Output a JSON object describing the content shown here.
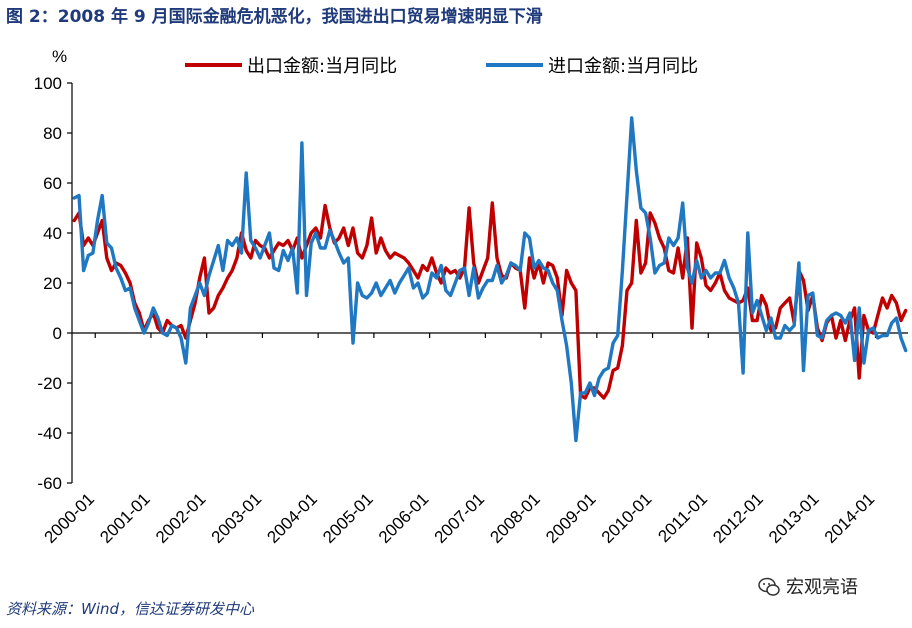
{
  "title": "图 2：2008 年 9 月国际金融危机恶化，我国进出口贸易增速明显下滑",
  "source": "资料来源：Wind，信达证券研发中心",
  "watermark": "宏观亮语",
  "colors": {
    "export": "#c00000",
    "import": "#1f78c1",
    "title": "#1f3a7a"
  },
  "chart_data": {
    "type": "line",
    "title": "2008 年 9 月国际金融危机恶化，我国进出口贸易增速明显下滑",
    "ylabel": "%",
    "xlabel": "",
    "ylim": [
      -60,
      100
    ],
    "yticks": [
      100,
      80,
      60,
      40,
      20,
      0,
      -20,
      -40,
      -60
    ],
    "xtick_labels": [
      "2000-01",
      "2001-01",
      "2002-01",
      "2003-01",
      "2004-01",
      "2005-01",
      "2006-01",
      "2007-01",
      "2008-01",
      "2009-01",
      "2010-01",
      "2011-01",
      "2012-01",
      "2013-01",
      "2014-01"
    ],
    "x_start": "2000-01",
    "x_end": "2014-12",
    "legend_position": "top-center",
    "series": [
      {
        "name": "出口金额:当月同比",
        "color": "#c00000",
        "values": [
          45,
          48,
          35,
          38,
          35,
          40,
          45,
          30,
          25,
          28,
          27,
          24,
          20,
          12,
          8,
          1,
          5,
          8,
          2,
          0,
          5,
          3,
          2,
          3,
          -2,
          5,
          12,
          22,
          30,
          8,
          10,
          15,
          18,
          22,
          25,
          30,
          40,
          33,
          30,
          37,
          35,
          34,
          30,
          33,
          36,
          35,
          37,
          33,
          38,
          30,
          35,
          40,
          42,
          38,
          51,
          42,
          36,
          38,
          42,
          35,
          42,
          32,
          30,
          35,
          46,
          32,
          38,
          33,
          30,
          32,
          31,
          30,
          28,
          25,
          22,
          27,
          25,
          30,
          24,
          20,
          26,
          24,
          25,
          22,
          26,
          50,
          28,
          20,
          25,
          30,
          52,
          30,
          23,
          22,
          28,
          26,
          25,
          10,
          30,
          22,
          28,
          20,
          28,
          27,
          22,
          7,
          25,
          20,
          17,
          -25,
          -26,
          -22,
          -22,
          -24,
          -26,
          -23,
          -15,
          -14,
          -5,
          17,
          20,
          45,
          24,
          28,
          48,
          44,
          38,
          34,
          25,
          24,
          34,
          22,
          38,
          2,
          36,
          30,
          19,
          17,
          20,
          24,
          17,
          14,
          13,
          12,
          13,
          18,
          5,
          5,
          15,
          11,
          1,
          2,
          10,
          12,
          14,
          4,
          25,
          21,
          9,
          15,
          2,
          -3,
          4,
          7,
          -2,
          5,
          -3,
          5,
          10,
          -18,
          7,
          1,
          0,
          7,
          14,
          10,
          15,
          12,
          5,
          9
        ]
      },
      {
        "name": "进口金额:当月同比",
        "color": "#1f78c1",
        "values": [
          54,
          55,
          25,
          31,
          32,
          45,
          55,
          36,
          34,
          26,
          22,
          17,
          18,
          10,
          5,
          0,
          4,
          10,
          6,
          0,
          -1,
          3,
          2,
          -2,
          -12,
          10,
          15,
          20,
          15,
          23,
          29,
          35,
          25,
          37,
          35,
          38,
          32,
          64,
          37,
          34,
          30,
          35,
          40,
          26,
          25,
          33,
          29,
          34,
          16,
          76,
          15,
          36,
          40,
          34,
          34,
          41,
          37,
          32,
          28,
          30,
          -4,
          20,
          15,
          14,
          16,
          20,
          15,
          18,
          21,
          16,
          20,
          23,
          26,
          18,
          20,
          14,
          16,
          24,
          22,
          27,
          17,
          15,
          20,
          25,
          26,
          15,
          26,
          14,
          18,
          21,
          21,
          27,
          20,
          23,
          28,
          27,
          25,
          40,
          38,
          26,
          29,
          26,
          25,
          20,
          17,
          5,
          -5,
          -20,
          -43,
          -24,
          -24,
          -20,
          -25,
          -18,
          -15,
          -14,
          -4,
          -1,
          25,
          55,
          86,
          65,
          50,
          48,
          38,
          24,
          27,
          28,
          38,
          35,
          38,
          52,
          26,
          20,
          29,
          22,
          25,
          22,
          24,
          24,
          29,
          22,
          18,
          12,
          -16,
          40,
          8,
          13,
          7,
          1,
          6,
          -2,
          -2,
          3,
          1,
          3,
          28,
          -15,
          15,
          16,
          -1,
          -2,
          5,
          7,
          8,
          7,
          4,
          8,
          -11,
          10,
          -12,
          1,
          2,
          -2,
          -1,
          -1,
          4,
          6,
          -2,
          -7
        ]
      }
    ]
  }
}
